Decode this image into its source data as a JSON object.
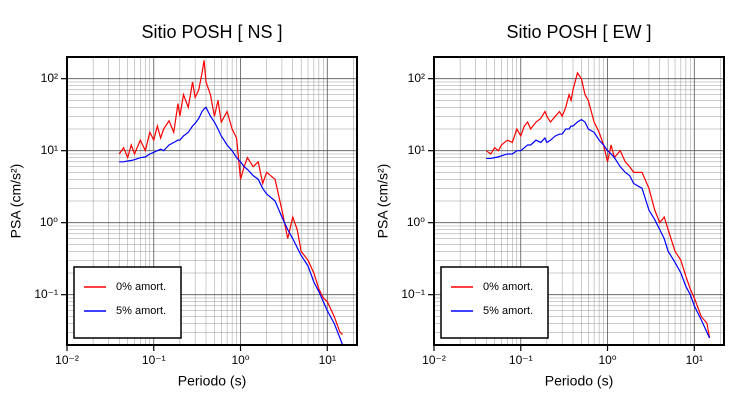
{
  "chart_data": [
    {
      "type": "line",
      "title": "Sitio POSH [ NS ]",
      "xlabel": "Periodo (s)",
      "ylabel": "PSA (cm/s²)",
      "xscale": "log",
      "yscale": "log",
      "grid": true,
      "minor_grid": true,
      "legend": "lower left",
      "xlim": [
        0.01,
        22
      ],
      "ylim": [
        0.02,
        200
      ],
      "xticks": [
        {
          "value": 0.01,
          "label": "10⁻²"
        },
        {
          "value": 0.1,
          "label": "10⁻¹"
        },
        {
          "value": 1,
          "label": "10⁰"
        },
        {
          "value": 10,
          "label": "10¹"
        }
      ],
      "yticks": [
        {
          "value": 0.1,
          "label": "10⁻¹"
        },
        {
          "value": 1,
          "label": "10⁰"
        },
        {
          "value": 10,
          "label": "10¹"
        },
        {
          "value": 100,
          "label": "10²"
        }
      ],
      "x": [
        0.04,
        0.045,
        0.05,
        0.055,
        0.06,
        0.07,
        0.08,
        0.09,
        0.1,
        0.11,
        0.12,
        0.13,
        0.15,
        0.17,
        0.19,
        0.2,
        0.22,
        0.25,
        0.28,
        0.3,
        0.33,
        0.36,
        0.38,
        0.4,
        0.45,
        0.5,
        0.55,
        0.6,
        0.7,
        0.8,
        0.9,
        1.0,
        1.1,
        1.2,
        1.4,
        1.6,
        1.8,
        2.0,
        2.5,
        3.0,
        3.5,
        4.0,
        4.5,
        5,
        6,
        7,
        8,
        9,
        10,
        12,
        14,
        15
      ],
      "series": [
        {
          "name": "0% amort.",
          "color": "#ff0000",
          "values": [
            9,
            11,
            8,
            12,
            9,
            14,
            10,
            18,
            14,
            22,
            15,
            20,
            26,
            18,
            45,
            30,
            60,
            40,
            90,
            55,
            70,
            120,
            180,
            90,
            60,
            30,
            50,
            25,
            35,
            20,
            15,
            4,
            6,
            8,
            6,
            7,
            3.5,
            5,
            4,
            1.5,
            0.6,
            1.2,
            0.8,
            0.4,
            0.3,
            0.2,
            0.12,
            0.09,
            0.08,
            0.05,
            0.03,
            0.028
          ]
        },
        {
          "name": "5% amort.",
          "color": "#0000ff",
          "values": [
            7,
            7,
            7.2,
            7.3,
            7.5,
            8,
            8.2,
            9,
            9.5,
            10,
            10.5,
            10,
            12,
            13,
            14,
            14,
            16,
            18,
            22,
            24,
            28,
            35,
            38,
            40,
            30,
            25,
            20,
            16,
            12,
            10,
            8,
            7,
            6,
            5.5,
            4.5,
            4,
            3,
            2.5,
            2,
            1.2,
            0.8,
            0.6,
            0.45,
            0.35,
            0.25,
            0.15,
            0.11,
            0.08,
            0.06,
            0.04,
            0.025,
            0.02
          ]
        }
      ]
    },
    {
      "type": "line",
      "title": "Sitio POSH [ EW ]",
      "xlabel": "Periodo (s)",
      "ylabel": "PSA (cm/s²)",
      "xscale": "log",
      "yscale": "log",
      "grid": true,
      "minor_grid": true,
      "legend": "lower left",
      "xlim": [
        0.01,
        22
      ],
      "ylim": [
        0.02,
        200
      ],
      "xticks": [
        {
          "value": 0.01,
          "label": "10⁻²"
        },
        {
          "value": 0.1,
          "label": "10⁻¹"
        },
        {
          "value": 1,
          "label": "10⁰"
        },
        {
          "value": 10,
          "label": "10¹"
        }
      ],
      "yticks": [
        {
          "value": 0.1,
          "label": "10⁻¹"
        },
        {
          "value": 1,
          "label": "10⁰"
        },
        {
          "value": 10,
          "label": "10¹"
        },
        {
          "value": 100,
          "label": "10²"
        }
      ],
      "x": [
        0.04,
        0.045,
        0.05,
        0.055,
        0.06,
        0.07,
        0.08,
        0.09,
        0.1,
        0.11,
        0.12,
        0.13,
        0.15,
        0.17,
        0.19,
        0.2,
        0.22,
        0.25,
        0.28,
        0.3,
        0.33,
        0.36,
        0.38,
        0.4,
        0.45,
        0.5,
        0.55,
        0.6,
        0.7,
        0.8,
        0.9,
        1.0,
        1.1,
        1.2,
        1.4,
        1.6,
        1.8,
        2.0,
        2.5,
        3.0,
        3.5,
        4.0,
        4.5,
        5,
        6,
        7,
        8,
        9,
        10,
        12,
        14,
        15
      ],
      "series": [
        {
          "name": "0% amort.",
          "color": "#ff0000",
          "values": [
            10,
            9,
            11,
            10,
            12,
            14,
            13,
            20,
            16,
            22,
            25,
            20,
            25,
            28,
            35,
            30,
            25,
            30,
            35,
            30,
            40,
            60,
            50,
            70,
            120,
            100,
            60,
            50,
            25,
            18,
            12,
            7,
            12,
            8,
            10,
            7,
            6,
            5,
            5,
            3,
            1.5,
            1,
            1.2,
            0.8,
            0.4,
            0.3,
            0.18,
            0.12,
            0.09,
            0.05,
            0.04,
            0.025
          ]
        },
        {
          "name": "5% amort.",
          "color": "#0000ff",
          "values": [
            7.8,
            7.8,
            8,
            8.2,
            8.5,
            9,
            9,
            10,
            10,
            11,
            12,
            12,
            14,
            13,
            15,
            13,
            14,
            16,
            17,
            17,
            20,
            20,
            22,
            22,
            25,
            27,
            25,
            20,
            18,
            14,
            12,
            10,
            9,
            8,
            6,
            5,
            4.5,
            3.5,
            3,
            1.5,
            1.1,
            0.8,
            0.6,
            0.4,
            0.28,
            0.2,
            0.13,
            0.1,
            0.07,
            0.045,
            0.03,
            0.025
          ]
        }
      ]
    }
  ]
}
